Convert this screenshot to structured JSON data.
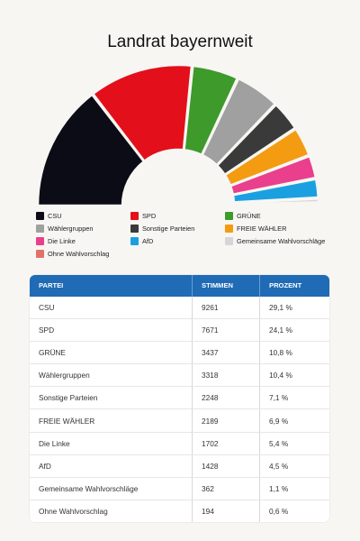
{
  "page": {
    "title": "Landrat bayernweit"
  },
  "chart_data": {
    "type": "pie",
    "variant": "half-donut",
    "title": "Landrat bayernweit",
    "unit": "%",
    "categories": [
      "CSU",
      "SPD",
      "GRÜNE",
      "Wählergruppen",
      "Sonstige Parteien",
      "FREIE WÄHLER",
      "Die Linke",
      "AfD",
      "Gemeinsame Wahlvorschläge",
      "Ohne Wahlvorschlag"
    ],
    "values": [
      29.1,
      24.1,
      10.8,
      10.4,
      7.1,
      6.9,
      5.4,
      4.5,
      1.1,
      0.6
    ],
    "colors": [
      "#0b0c15",
      "#e30f1b",
      "#3d9a2b",
      "#a0a0a0",
      "#3a3a3a",
      "#f39c12",
      "#ea3f8c",
      "#1aa0e0",
      "#d6d6d6",
      "#e07268"
    ],
    "legend_position": "bottom"
  },
  "legend": [
    {
      "label": "CSU",
      "color": "#0b0c15"
    },
    {
      "label": "SPD",
      "color": "#e30f1b"
    },
    {
      "label": "GRÜNE",
      "color": "#3d9a2b"
    },
    {
      "label": "Wählergruppen",
      "color": "#a0a0a0"
    },
    {
      "label": "Sonstige Parteien",
      "color": "#3a3a3a"
    },
    {
      "label": "FREIE WÄHLER",
      "color": "#f39c12"
    },
    {
      "label": "Die Linke",
      "color": "#ea3f8c"
    },
    {
      "label": "AfD",
      "color": "#1aa0e0"
    },
    {
      "label": "Gemeinsame Wahlvorschläge",
      "color": "#d6d6d6"
    },
    {
      "label": "Ohne Wahlvorschlag",
      "color": "#e07268"
    }
  ],
  "table": {
    "headers": [
      "PARTEI",
      "STIMMEN",
      "PROZENT"
    ],
    "rows": [
      [
        "CSU",
        "9261",
        "29,1 %"
      ],
      [
        "SPD",
        "7671",
        "24,1 %"
      ],
      [
        "GRÜNE",
        "3437",
        "10,8 %"
      ],
      [
        "Wählergruppen",
        "3318",
        "10,4 %"
      ],
      [
        "Sonstige Parteien",
        "2248",
        "7,1 %"
      ],
      [
        "FREIE WÄHLER",
        "2189",
        "6,9 %"
      ],
      [
        "Die Linke",
        "1702",
        "5,4 %"
      ],
      [
        "AfD",
        "1428",
        "4,5 %"
      ],
      [
        "Gemeinsame Wahlvorschläge",
        "362",
        "1,1 %"
      ],
      [
        "Ohne Wahlvorschlag",
        "194",
        "0,6 %"
      ]
    ]
  }
}
